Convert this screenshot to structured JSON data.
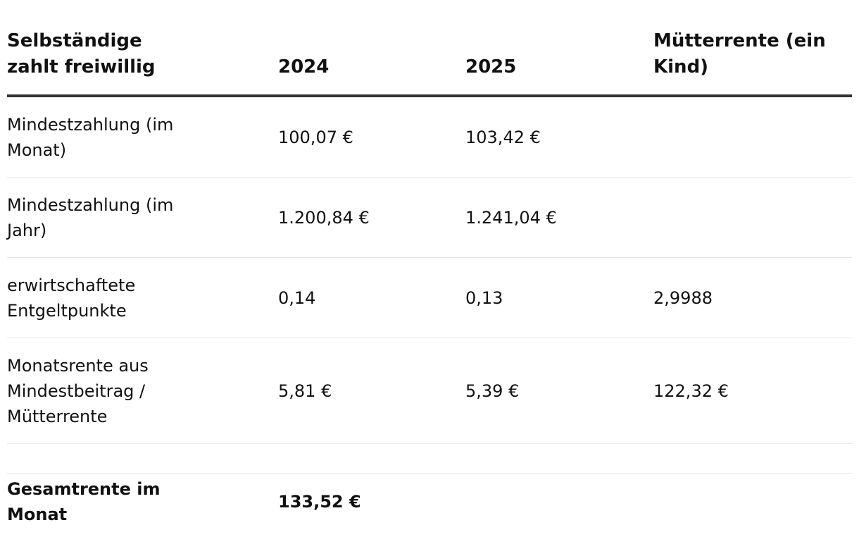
{
  "table": {
    "header": [
      "Selbständige zahlt freiwillig",
      "2024",
      "2025",
      "Mütterrente (ein Kind)"
    ],
    "rows": [
      [
        "Mindestzahlung (im Monat)",
        "100,07 €",
        "103,42 €",
        null
      ],
      [
        "Mindestzahlung (im Jahr)",
        "1.200,84 €",
        "1.241,04 €",
        null
      ],
      [
        "erwirtschaftete Entgeltpunkte",
        "0,14",
        "0,13",
        "2,9988"
      ],
      [
        "Monatsrente aus Mindestbeitrag / Mütterrente",
        "5,81 €",
        "5,39 €",
        "122,32 €"
      ]
    ],
    "footer": [
      "Gesamtrente im Monat",
      "133,52 €"
    ]
  }
}
